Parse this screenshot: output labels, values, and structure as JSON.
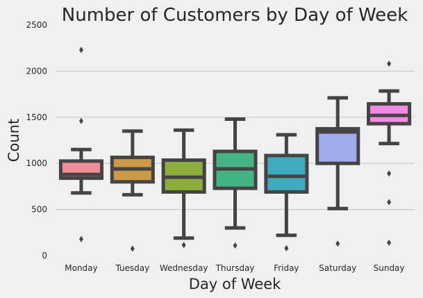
{
  "chart_data": {
    "type": "box",
    "title": "Number of Customers by Day of Week",
    "xlabel": "Day of Week",
    "ylabel": "Count",
    "ylim": [
      0,
      2500
    ],
    "yticks": [
      0,
      500,
      1000,
      1500,
      2000,
      2500
    ],
    "grid": "horizontal",
    "categories": [
      "Monday",
      "Tuesday",
      "Wednesday",
      "Thursday",
      "Friday",
      "Saturday",
      "Sunday"
    ],
    "boxes": [
      {
        "category": "Monday",
        "color": "#f28c99",
        "whisker_low": 680,
        "q1": 840,
        "median": 880,
        "q3": 1025,
        "whisker_high": 1150,
        "outliers": [
          2230,
          1460,
          180
        ]
      },
      {
        "category": "Tuesday",
        "color": "#cc9a43",
        "whisker_low": 660,
        "q1": 800,
        "median": 940,
        "q3": 1065,
        "whisker_high": 1350,
        "outliers": [
          75
        ]
      },
      {
        "category": "Wednesday",
        "color": "#8cae3c",
        "whisker_low": 190,
        "q1": 690,
        "median": 850,
        "q3": 1035,
        "whisker_high": 1360,
        "outliers": [
          115
        ]
      },
      {
        "category": "Thursday",
        "color": "#44b483",
        "whisker_low": 300,
        "q1": 730,
        "median": 940,
        "q3": 1130,
        "whisker_high": 1480,
        "outliers": [
          110
        ]
      },
      {
        "category": "Friday",
        "color": "#3fabbd",
        "whisker_low": 220,
        "q1": 690,
        "median": 860,
        "q3": 1085,
        "whisker_high": 1310,
        "outliers": [
          80
        ]
      },
      {
        "category": "Saturday",
        "color": "#a1acee",
        "whisker_low": 510,
        "q1": 1000,
        "median": 1340,
        "q3": 1375,
        "whisker_high": 1710,
        "outliers": [
          130
        ]
      },
      {
        "category": "Sunday",
        "color": "#f58ae4",
        "whisker_low": 1215,
        "q1": 1430,
        "median": 1520,
        "q3": 1645,
        "whisker_high": 1785,
        "outliers": [
          2080,
          890,
          580,
          140
        ]
      }
    ]
  }
}
